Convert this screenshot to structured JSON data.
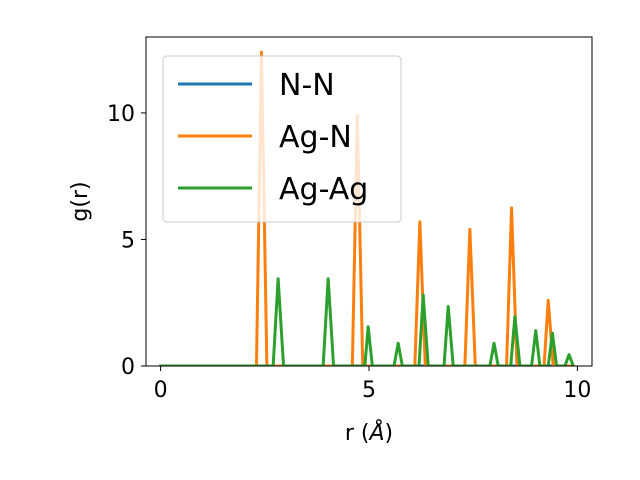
{
  "chart_data": {
    "type": "line",
    "xlabel": "r (",
    "xlabel_unit": "Å",
    "xlabel_suffix": ")",
    "ylabel": "g(r)",
    "xlim": [
      -0.35,
      10.35
    ],
    "ylim": [
      0,
      13
    ],
    "xticks": [
      0,
      5,
      10
    ],
    "yticks": [
      0,
      5,
      10
    ],
    "grid": false,
    "legend_position": "upper-left",
    "series": [
      {
        "name": "N-N",
        "color": "#1f77b4",
        "points": [
          [
            0,
            0
          ],
          [
            9.9,
            0
          ]
        ]
      },
      {
        "name": "Ag-N",
        "color": "#ff7f0e",
        "points": [
          [
            0,
            0
          ],
          [
            2.3,
            0
          ],
          [
            2.42,
            12.4
          ],
          [
            2.55,
            0
          ],
          [
            4.6,
            0
          ],
          [
            4.72,
            9.9
          ],
          [
            4.85,
            0
          ],
          [
            6.1,
            0
          ],
          [
            6.22,
            5.7
          ],
          [
            6.35,
            0
          ],
          [
            7.3,
            0
          ],
          [
            7.42,
            5.4
          ],
          [
            7.55,
            0
          ],
          [
            8.3,
            0
          ],
          [
            8.42,
            6.25
          ],
          [
            8.55,
            0
          ],
          [
            9.2,
            0
          ],
          [
            9.3,
            2.6
          ],
          [
            9.42,
            0
          ],
          [
            9.9,
            0
          ]
        ]
      },
      {
        "name": "Ag-Ag",
        "color": "#2ca02c",
        "points": [
          [
            0,
            0
          ],
          [
            2.7,
            0
          ],
          [
            2.82,
            3.45
          ],
          [
            2.95,
            0
          ],
          [
            3.9,
            0
          ],
          [
            4.02,
            3.45
          ],
          [
            4.15,
            0
          ],
          [
            4.9,
            0
          ],
          [
            4.98,
            1.55
          ],
          [
            5.08,
            0
          ],
          [
            5.6,
            0
          ],
          [
            5.7,
            0.9
          ],
          [
            5.8,
            0
          ],
          [
            6.2,
            0
          ],
          [
            6.3,
            2.8
          ],
          [
            6.42,
            0
          ],
          [
            6.8,
            0
          ],
          [
            6.9,
            2.35
          ],
          [
            7.02,
            0
          ],
          [
            7.9,
            0
          ],
          [
            8.0,
            0.9
          ],
          [
            8.1,
            0
          ],
          [
            8.4,
            0
          ],
          [
            8.5,
            1.95
          ],
          [
            8.62,
            0
          ],
          [
            8.9,
            0
          ],
          [
            9.0,
            1.4
          ],
          [
            9.1,
            0
          ],
          [
            9.3,
            0
          ],
          [
            9.4,
            1.3
          ],
          [
            9.5,
            0
          ],
          [
            9.7,
            0
          ],
          [
            9.8,
            0.45
          ],
          [
            9.9,
            0
          ]
        ]
      }
    ]
  }
}
